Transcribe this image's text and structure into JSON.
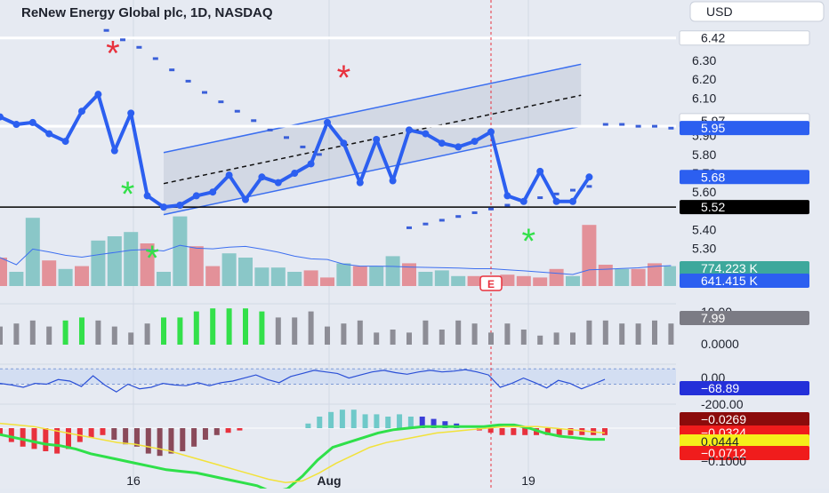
{
  "header": {
    "title": "ReNew Energy Global plc, 1D, NASDAQ",
    "currency": "USD"
  },
  "colors": {
    "price_line": "#2c5ff0",
    "channel": "#3a6ef0",
    "up": "#7fc3c3",
    "down": "#e2878f",
    "green_signal": "#33e04a",
    "red_signal": "#e8313d",
    "grey_signal": "#8d8d96"
  },
  "chart_data": [
    {
      "type": "line",
      "name": "price",
      "x_labels": [
        "16",
        "Aug",
        "19"
      ],
      "ylim": [
        5.1,
        6.48
      ],
      "y_ticks": [
        "6.30",
        "6.20",
        "6.10",
        "5.90",
        "5.80",
        "5.70",
        "5.60",
        "5.40",
        "5.30"
      ],
      "values": [
        6.0,
        5.96,
        5.97,
        5.91,
        5.87,
        6.03,
        6.12,
        5.82,
        6.02,
        5.58,
        5.52,
        5.53,
        5.58,
        5.6,
        5.69,
        5.56,
        5.68,
        5.65,
        5.7,
        5.75,
        5.97,
        5.86,
        5.65,
        5.88,
        5.66,
        5.93,
        5.91,
        5.86,
        5.84,
        5.87,
        5.92,
        5.58,
        5.55,
        5.71,
        5.55,
        5.55,
        5.68
      ],
      "dotted_series": [
        6.46,
        6.41,
        6.37,
        6.31,
        6.25,
        6.19,
        6.13,
        6.08,
        6.03,
        5.98,
        5.93,
        5.89,
        5.84,
        5.8,
        5.41,
        5.43,
        5.45,
        5.47,
        5.49,
        5.51,
        5.53,
        5.55,
        5.57,
        5.59,
        5.61,
        5.63,
        5.96,
        5.96,
        5.95,
        5.95,
        5.94,
        5.94
      ],
      "horizontal_levels": [
        6.42,
        5.95,
        5.52
      ],
      "price_labels": [
        {
          "text": "6.42",
          "style": "white"
        },
        {
          "text": "5.97",
          "style": "white"
        },
        {
          "text": "5.95",
          "style": "blue"
        },
        {
          "text": "5.68",
          "style": "blue"
        },
        {
          "text": "5.52",
          "style": "black"
        }
      ],
      "volume_labels": [
        {
          "text": "774.223 K",
          "style": "teal"
        },
        {
          "text": "641.415 K",
          "style": "blue"
        }
      ],
      "volume": [
        {
          "v": 2.0,
          "up": false
        },
        {
          "v": 1.0,
          "up": true
        },
        {
          "v": 4.8,
          "up": true
        },
        {
          "v": 1.8,
          "up": false
        },
        {
          "v": 1.2,
          "up": true
        },
        {
          "v": 1.4,
          "up": false
        },
        {
          "v": 3.2,
          "up": true
        },
        {
          "v": 3.5,
          "up": true
        },
        {
          "v": 3.8,
          "up": true
        },
        {
          "v": 3.0,
          "up": false
        },
        {
          "v": 1.0,
          "up": true
        },
        {
          "v": 4.9,
          "up": true
        },
        {
          "v": 2.8,
          "up": false
        },
        {
          "v": 1.4,
          "up": false
        },
        {
          "v": 2.3,
          "up": true
        },
        {
          "v": 2.0,
          "up": true
        },
        {
          "v": 1.3,
          "up": true
        },
        {
          "v": 1.3,
          "up": true
        },
        {
          "v": 1.0,
          "up": true
        },
        {
          "v": 1.1,
          "up": false
        },
        {
          "v": 0.6,
          "up": false
        },
        {
          "v": 1.6,
          "up": true
        },
        {
          "v": 1.4,
          "up": false
        },
        {
          "v": 1.4,
          "up": true
        },
        {
          "v": 2.1,
          "up": true
        },
        {
          "v": 1.6,
          "up": false
        },
        {
          "v": 1.0,
          "up": true
        },
        {
          "v": 1.1,
          "up": true
        },
        {
          "v": 0.7,
          "up": true
        },
        {
          "v": 0.7,
          "up": false
        },
        {
          "v": 0.6,
          "up": false
        },
        {
          "v": 0.8,
          "up": false
        },
        {
          "v": 0.7,
          "up": false
        },
        {
          "v": 0.6,
          "up": false
        },
        {
          "v": 1.2,
          "up": false
        },
        {
          "v": 0.7,
          "up": true
        },
        {
          "v": 4.3,
          "up": false
        },
        {
          "v": 1.5,
          "up": false
        },
        {
          "v": 1.2,
          "up": true
        },
        {
          "v": 1.2,
          "up": false
        },
        {
          "v": 1.6,
          "up": false
        },
        {
          "v": 1.4,
          "up": true
        }
      ],
      "earnings_label": "E"
    },
    {
      "type": "bar",
      "name": "indicator-1",
      "y_ticks": [
        "10.00",
        "0.0000"
      ],
      "last_value": "7.99",
      "bars": [
        {
          "v": 6,
          "c": "grey"
        },
        {
          "v": 7,
          "c": "grey"
        },
        {
          "v": 8,
          "c": "grey"
        },
        {
          "v": 6,
          "c": "grey"
        },
        {
          "v": 8,
          "c": "green"
        },
        {
          "v": 9,
          "c": "green"
        },
        {
          "v": 8,
          "c": "grey"
        },
        {
          "v": 6,
          "c": "grey"
        },
        {
          "v": 4,
          "c": "grey"
        },
        {
          "v": 7,
          "c": "grey"
        },
        {
          "v": 9,
          "c": "green"
        },
        {
          "v": 9,
          "c": "green"
        },
        {
          "v": 11,
          "c": "green"
        },
        {
          "v": 12,
          "c": "green"
        },
        {
          "v": 12,
          "c": "green"
        },
        {
          "v": 12,
          "c": "green"
        },
        {
          "v": 11,
          "c": "green"
        },
        {
          "v": 9,
          "c": "grey"
        },
        {
          "v": 9,
          "c": "grey"
        },
        {
          "v": 11,
          "c": "grey"
        },
        {
          "v": 6,
          "c": "grey"
        },
        {
          "v": 7,
          "c": "grey"
        },
        {
          "v": 8,
          "c": "grey"
        },
        {
          "v": 4,
          "c": "grey"
        },
        {
          "v": 5,
          "c": "grey"
        },
        {
          "v": 4,
          "c": "grey"
        },
        {
          "v": 8,
          "c": "grey"
        },
        {
          "v": 5,
          "c": "grey"
        },
        {
          "v": 8,
          "c": "grey"
        },
        {
          "v": 7,
          "c": "grey"
        },
        {
          "v": 4,
          "c": "grey"
        },
        {
          "v": 7,
          "c": "grey"
        },
        {
          "v": 5,
          "c": "grey"
        },
        {
          "v": 3,
          "c": "grey"
        },
        {
          "v": 4,
          "c": "grey"
        },
        {
          "v": 4,
          "c": "grey"
        },
        {
          "v": 8,
          "c": "grey"
        },
        {
          "v": 8,
          "c": "grey"
        },
        {
          "v": 7,
          "c": "grey"
        },
        {
          "v": 7,
          "c": "grey"
        },
        {
          "v": 8,
          "c": "grey"
        },
        {
          "v": 7,
          "c": "grey"
        }
      ]
    },
    {
      "type": "line",
      "name": "oscillator",
      "y_ticks": [
        "0.00",
        "-200.00"
      ],
      "ylim": [
        -230,
        30
      ],
      "band": [
        -100,
        0
      ],
      "last_value": "−68.89",
      "values": [
        -95,
        -105,
        -120,
        -95,
        -100,
        -70,
        -80,
        -115,
        -45,
        -105,
        -150,
        -100,
        -130,
        -120,
        -95,
        -105,
        -110,
        -90,
        -110,
        -90,
        -80,
        -60,
        -40,
        -70,
        -90,
        -50,
        -30,
        -10,
        -20,
        -30,
        -60,
        -40,
        -20,
        -10,
        -25,
        -35,
        -20,
        -10,
        -20,
        -15,
        -5,
        -20,
        -40,
        -120,
        -95,
        -60,
        -90,
        -125,
        -75,
        -95,
        -130,
        -100,
        -69
      ]
    },
    {
      "type": "bar",
      "name": "macd",
      "y_ticks": [
        "−0.1000"
      ],
      "last_values": [
        {
          "text": "−0.0269",
          "style": "darkred"
        },
        {
          "text": "−0.0324",
          "style": "red"
        },
        {
          "text": "0.0444",
          "style": "yellow"
        },
        {
          "text": "−0.0712",
          "style": "red"
        }
      ],
      "histogram": [
        -0.03,
        -0.06,
        -0.08,
        -0.09,
        -0.1,
        -0.11,
        -0.09,
        -0.06,
        -0.04,
        -0.03,
        -0.05,
        -0.07,
        -0.08,
        -0.11,
        -0.12,
        -0.11,
        -0.1,
        -0.08,
        -0.05,
        -0.03,
        -0.02,
        -0.01,
        0,
        0,
        0,
        0,
        0,
        0.02,
        0.05,
        0.07,
        0.08,
        0.08,
        0.06,
        0.06,
        0.05,
        0.06,
        0.05,
        0.05,
        0.04,
        0.03,
        0.02,
        0,
        -0.01,
        -0.02,
        -0.03,
        -0.03,
        -0.03,
        -0.03,
        -0.03,
        -0.03,
        -0.03,
        -0.03,
        -0.03,
        -0.03
      ],
      "macd_line": [
        -0.04,
        -0.06,
        -0.08,
        -0.1,
        -0.11,
        -0.13,
        -0.16,
        -0.18,
        -0.2,
        -0.22,
        -0.24,
        -0.26,
        -0.27,
        -0.28,
        -0.3,
        -0.32,
        -0.34,
        -0.36,
        -0.4,
        -0.38,
        -0.3,
        -0.2,
        -0.12,
        -0.09,
        -0.06,
        -0.03,
        -0.01,
        0,
        0.01,
        0.01,
        0.01,
        0.01,
        0.01,
        0.02,
        0.02,
        0,
        -0.03,
        -0.05,
        -0.06,
        -0.07,
        -0.07
      ],
      "signal_line": [
        0.03,
        0.02,
        0.01,
        -0.01,
        -0.03,
        -0.05,
        -0.07,
        -0.09,
        -0.1,
        -0.12,
        -0.14,
        -0.17,
        -0.2,
        -0.23,
        -0.26,
        -0.29,
        -0.32,
        -0.34,
        -0.33,
        -0.28,
        -0.22,
        -0.17,
        -0.12,
        -0.09,
        -0.07,
        -0.05,
        -0.03,
        -0.02,
        -0.01,
        0,
        0.01,
        0.01,
        0.01,
        0,
        -0.01,
        -0.02,
        -0.03
      ]
    }
  ]
}
